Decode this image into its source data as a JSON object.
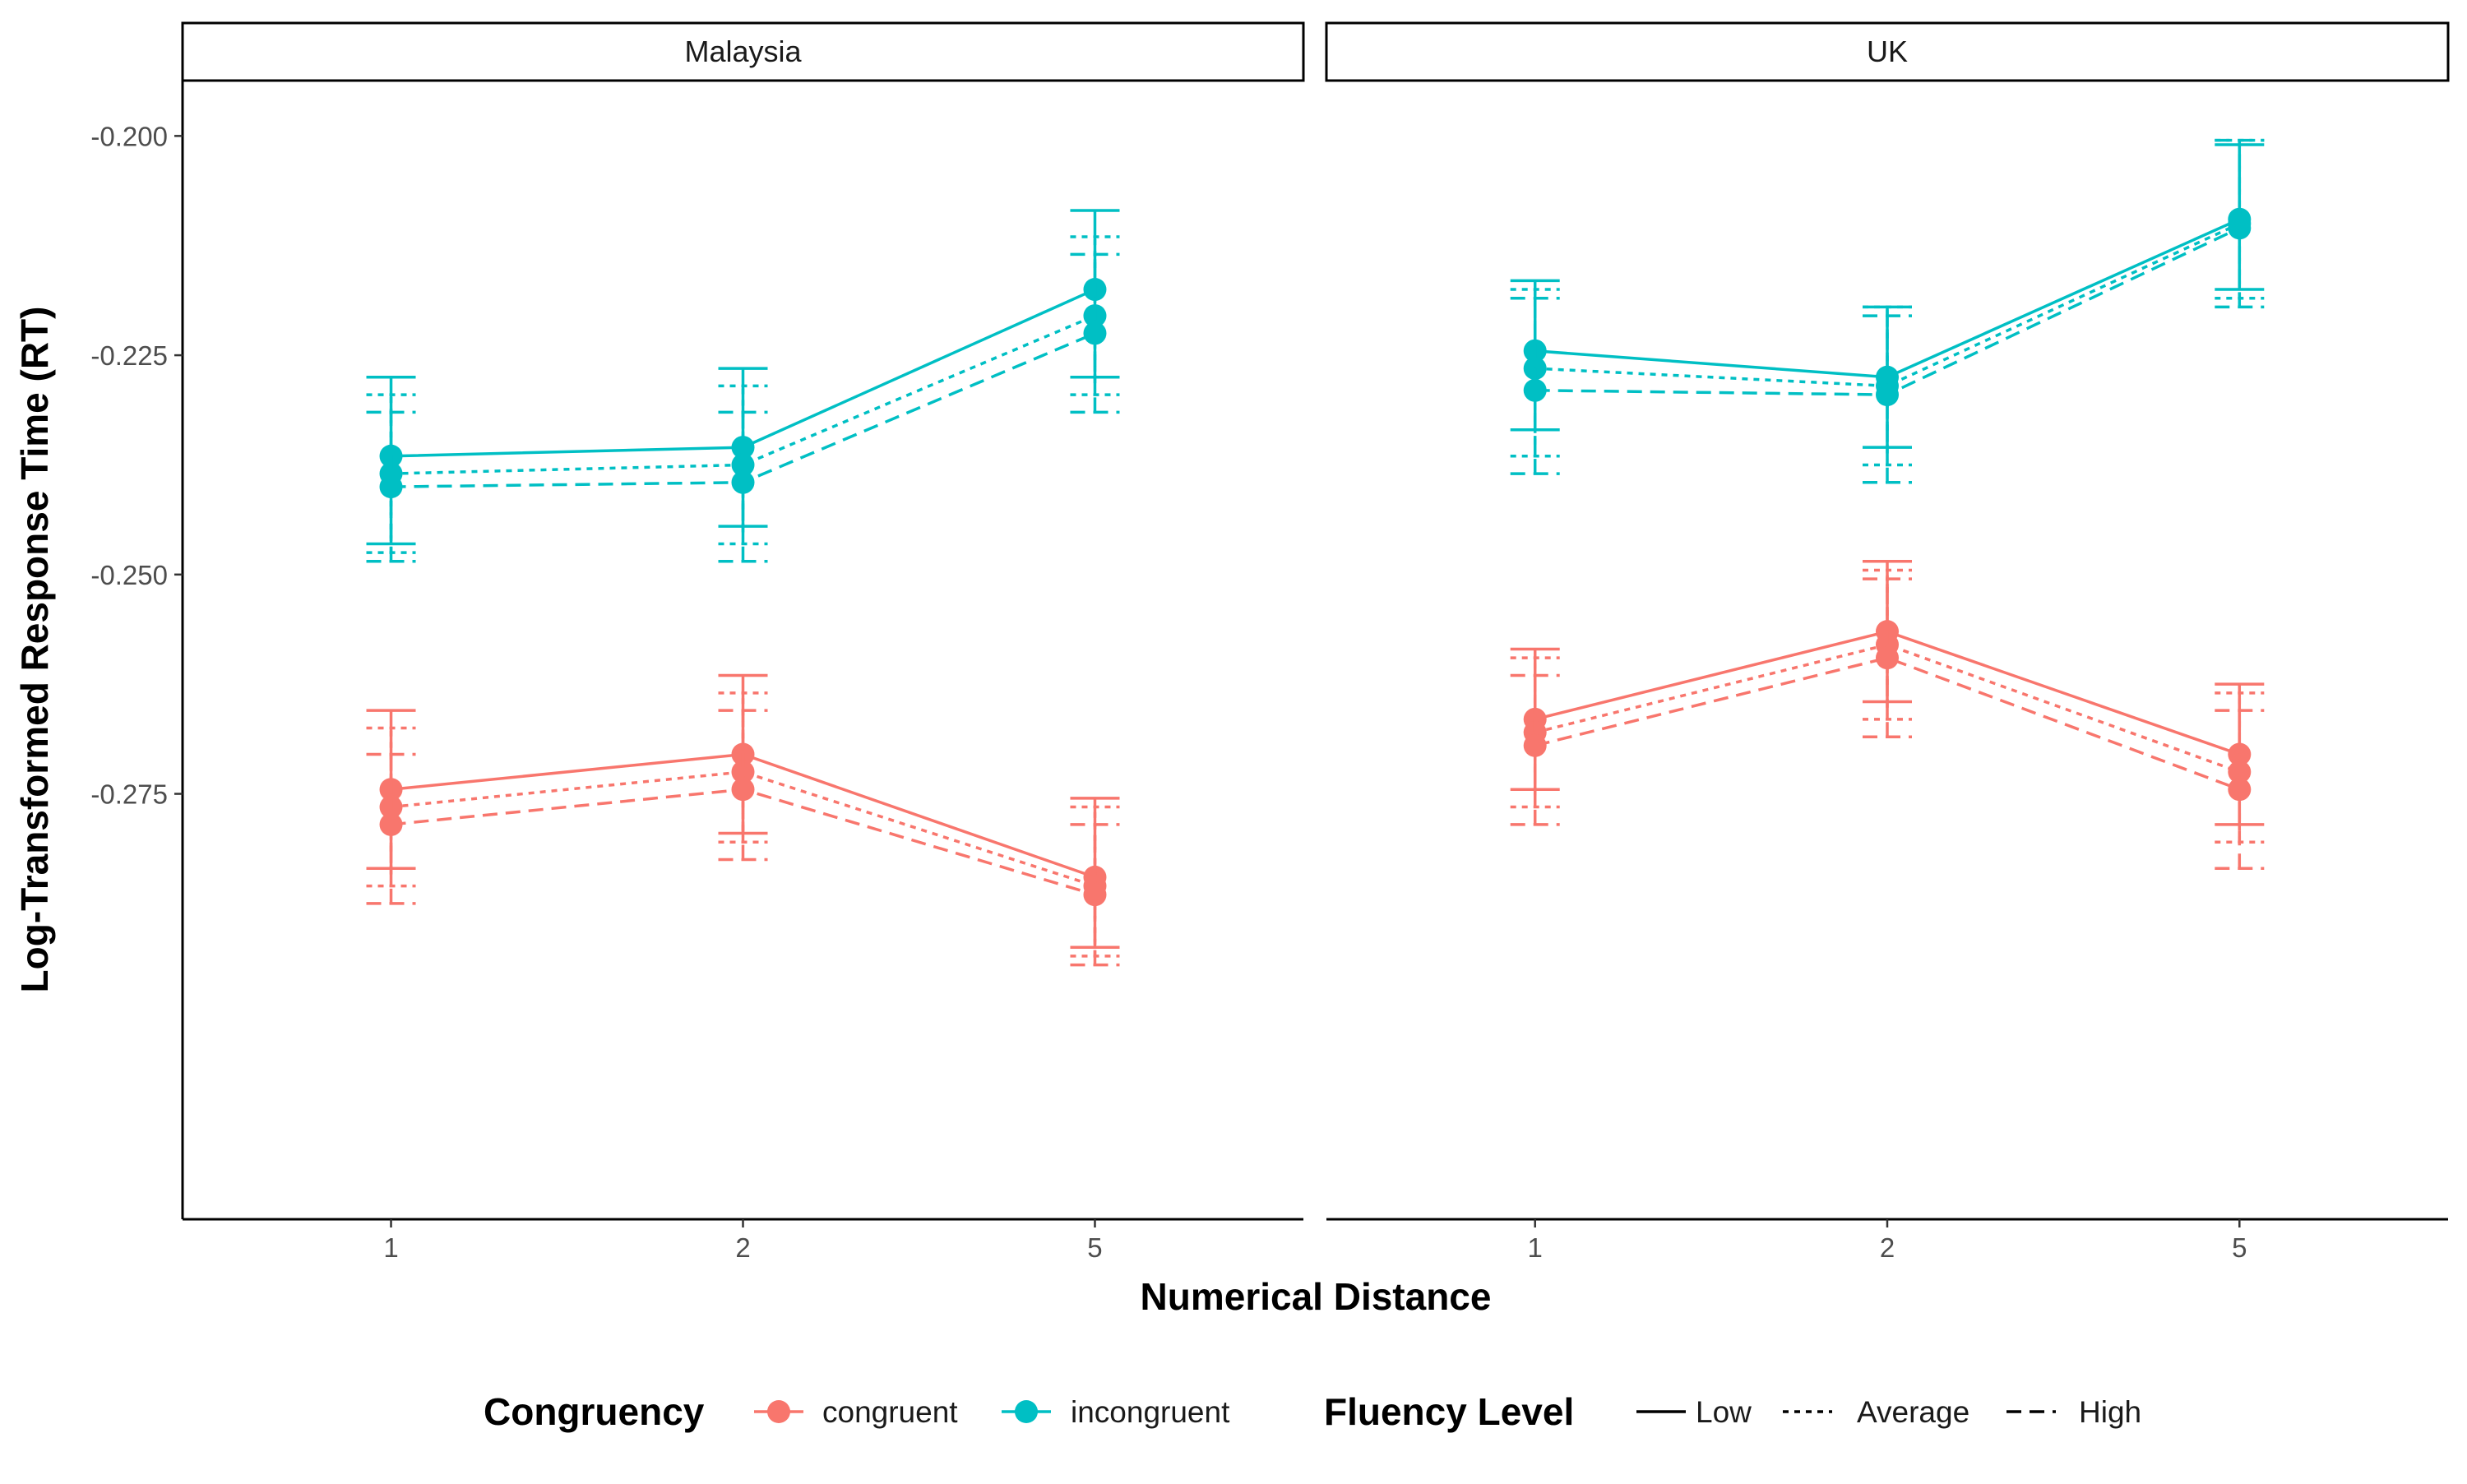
{
  "chart_data": {
    "type": "line",
    "xlabel": "Numerical Distance",
    "ylabel": "Log-Transformed Response Time (RT)",
    "categories": [
      "1",
      "2",
      "5"
    ],
    "ylim": [
      -0.3235,
      -0.1935
    ],
    "y_ticks": [
      -0.2,
      -0.225,
      -0.25,
      -0.275
    ],
    "y_tick_labels": [
      "-0.200",
      "-0.225",
      "-0.250",
      "-0.275"
    ],
    "grid": false,
    "legend_position": "bottom",
    "congruency_legend": {
      "title": "Congruency",
      "items": [
        {
          "label": "congruent",
          "color": "#F8766D"
        },
        {
          "label": "incongruent",
          "color": "#00BFC4"
        }
      ]
    },
    "fluency_legend": {
      "title": "Fluency Level",
      "items": [
        {
          "label": "Low",
          "dash": "solid"
        },
        {
          "label": "Average",
          "dash": "dotted"
        },
        {
          "label": "High",
          "dash": "dashed"
        }
      ]
    },
    "panels": [
      {
        "title": "Malaysia",
        "series": [
          {
            "congruency": "congruent",
            "fluency": "Low",
            "values": [
              -0.2745,
              -0.2705,
              -0.2845
            ],
            "lower": [
              -0.2835,
              -0.2795,
              -0.2925
            ],
            "upper": [
              -0.2655,
              -0.2615,
              -0.2755
            ]
          },
          {
            "congruency": "congruent",
            "fluency": "Average",
            "values": [
              -0.2765,
              -0.2725,
              -0.2855
            ],
            "lower": [
              -0.2855,
              -0.2805,
              -0.2935
            ],
            "upper": [
              -0.2675,
              -0.2635,
              -0.2765
            ]
          },
          {
            "congruency": "congruent",
            "fluency": "High",
            "values": [
              -0.2785,
              -0.2745,
              -0.2865
            ],
            "lower": [
              -0.2875,
              -0.2825,
              -0.2945
            ],
            "upper": [
              -0.2705,
              -0.2655,
              -0.2785
            ]
          },
          {
            "congruency": "incongruent",
            "fluency": "Low",
            "values": [
              -0.2365,
              -0.2355,
              -0.2175
            ],
            "lower": [
              -0.2465,
              -0.2445,
              -0.2275
            ],
            "upper": [
              -0.2275,
              -0.2265,
              -0.2085
            ]
          },
          {
            "congruency": "incongruent",
            "fluency": "Average",
            "values": [
              -0.2385,
              -0.2375,
              -0.2205
            ],
            "lower": [
              -0.2475,
              -0.2465,
              -0.2295
            ],
            "upper": [
              -0.2295,
              -0.2285,
              -0.2115
            ]
          },
          {
            "congruency": "incongruent",
            "fluency": "High",
            "values": [
              -0.24,
              -0.2395,
              -0.2225
            ],
            "lower": [
              -0.2485,
              -0.2485,
              -0.2315
            ],
            "upper": [
              -0.2315,
              -0.2315,
              -0.2135
            ]
          }
        ]
      },
      {
        "title": "UK",
        "series": [
          {
            "congruency": "congruent",
            "fluency": "Low",
            "values": [
              -0.2665,
              -0.2565,
              -0.2705
            ],
            "lower": [
              -0.2745,
              -0.2645,
              -0.2785
            ],
            "upper": [
              -0.2585,
              -0.2485,
              -0.2625
            ]
          },
          {
            "congruency": "congruent",
            "fluency": "Average",
            "values": [
              -0.268,
              -0.258,
              -0.2725
            ],
            "lower": [
              -0.2765,
              -0.2665,
              -0.2805
            ],
            "upper": [
              -0.2595,
              -0.2495,
              -0.2635
            ]
          },
          {
            "congruency": "congruent",
            "fluency": "High",
            "values": [
              -0.2695,
              -0.2595,
              -0.2745
            ],
            "lower": [
              -0.2785,
              -0.2685,
              -0.2835
            ],
            "upper": [
              -0.2615,
              -0.2505,
              -0.2655
            ]
          },
          {
            "congruency": "incongruent",
            "fluency": "Low",
            "values": [
              -0.2245,
              -0.2275,
              -0.2095
            ],
            "lower": [
              -0.2335,
              -0.2355,
              -0.2175
            ],
            "upper": [
              -0.2165,
              -0.2195,
              -0.201
            ]
          },
          {
            "congruency": "incongruent",
            "fluency": "Average",
            "values": [
              -0.2265,
              -0.2285,
              -0.21
            ],
            "lower": [
              -0.2365,
              -0.2375,
              -0.2185
            ],
            "upper": [
              -0.2175,
              -0.2195,
              -0.2005
            ]
          },
          {
            "congruency": "incongruent",
            "fluency": "High",
            "values": [
              -0.229,
              -0.2295,
              -0.2105
            ],
            "lower": [
              -0.2385,
              -0.2395,
              -0.2195
            ],
            "upper": [
              -0.2185,
              -0.2205,
              -0.2005
            ]
          }
        ]
      }
    ]
  }
}
